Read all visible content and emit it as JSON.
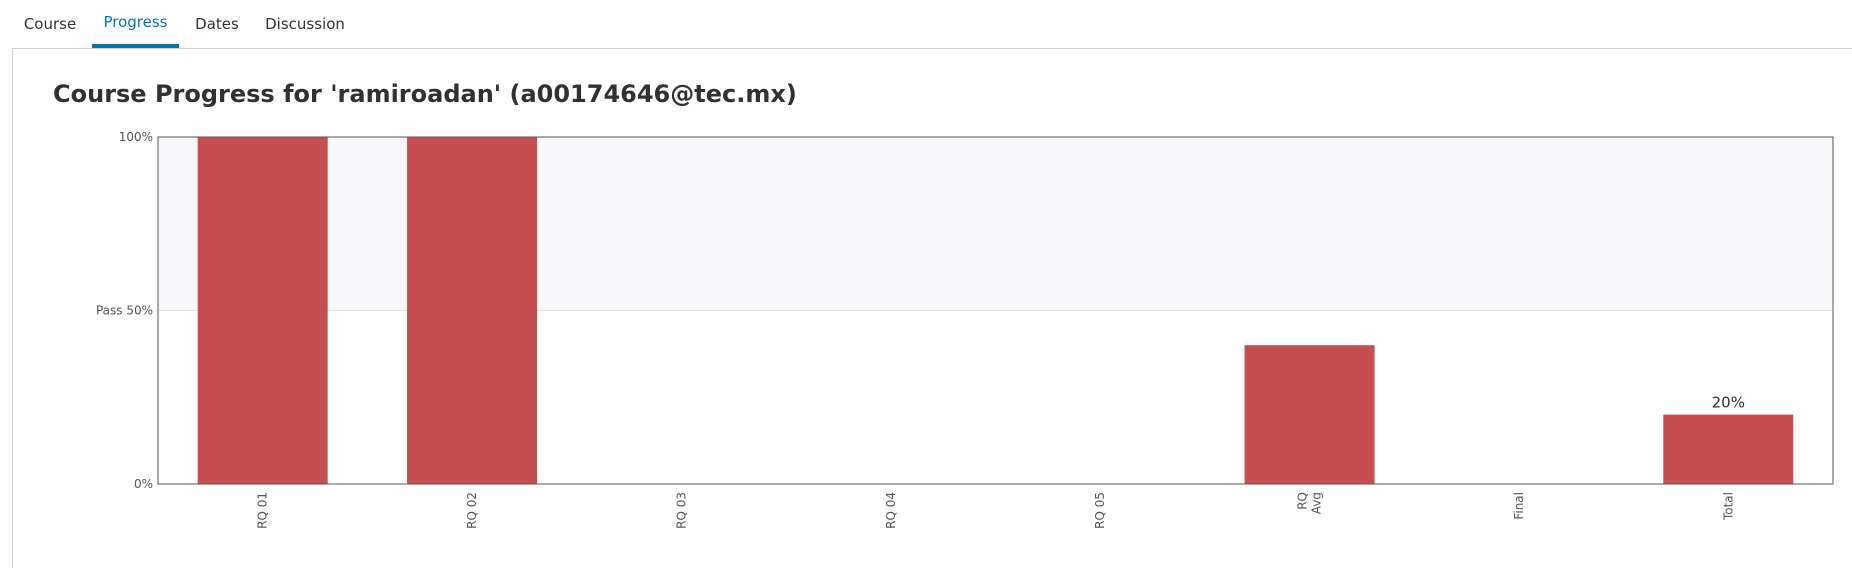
{
  "tabs": [
    {
      "label": "Course",
      "active": false
    },
    {
      "label": "Progress",
      "active": true
    },
    {
      "label": "Dates",
      "active": false
    },
    {
      "label": "Discussion",
      "active": false
    }
  ],
  "page": {
    "title": "Course Progress for 'ramiroadan' (a00174646@tec.mx)"
  },
  "colors": {
    "accent": "#0075b4",
    "bar": "#c44e50",
    "pass_band": "#f8f8fa"
  },
  "chart_data": {
    "type": "bar",
    "title": "",
    "xlabel": "",
    "ylabel": "",
    "ylim": [
      0,
      100
    ],
    "y_ticks": [
      {
        "value": 0,
        "label": "0%"
      },
      {
        "value": 50,
        "label": "Pass 50%"
      },
      {
        "value": 100,
        "label": "100%"
      }
    ],
    "pass_threshold": 50,
    "categories": [
      [
        "RQ 01"
      ],
      [
        "RQ 02"
      ],
      [
        "RQ 03"
      ],
      [
        "RQ 04"
      ],
      [
        "RQ 05"
      ],
      [
        "RQ",
        "Avg"
      ],
      [
        "Final"
      ],
      [
        "Total"
      ]
    ],
    "values": [
      100,
      100,
      0,
      0,
      0,
      40,
      0,
      20
    ],
    "data_labels": [
      "",
      "",
      "",
      "",
      "",
      "",
      "",
      "20%"
    ],
    "grid": false,
    "legend": "none"
  }
}
